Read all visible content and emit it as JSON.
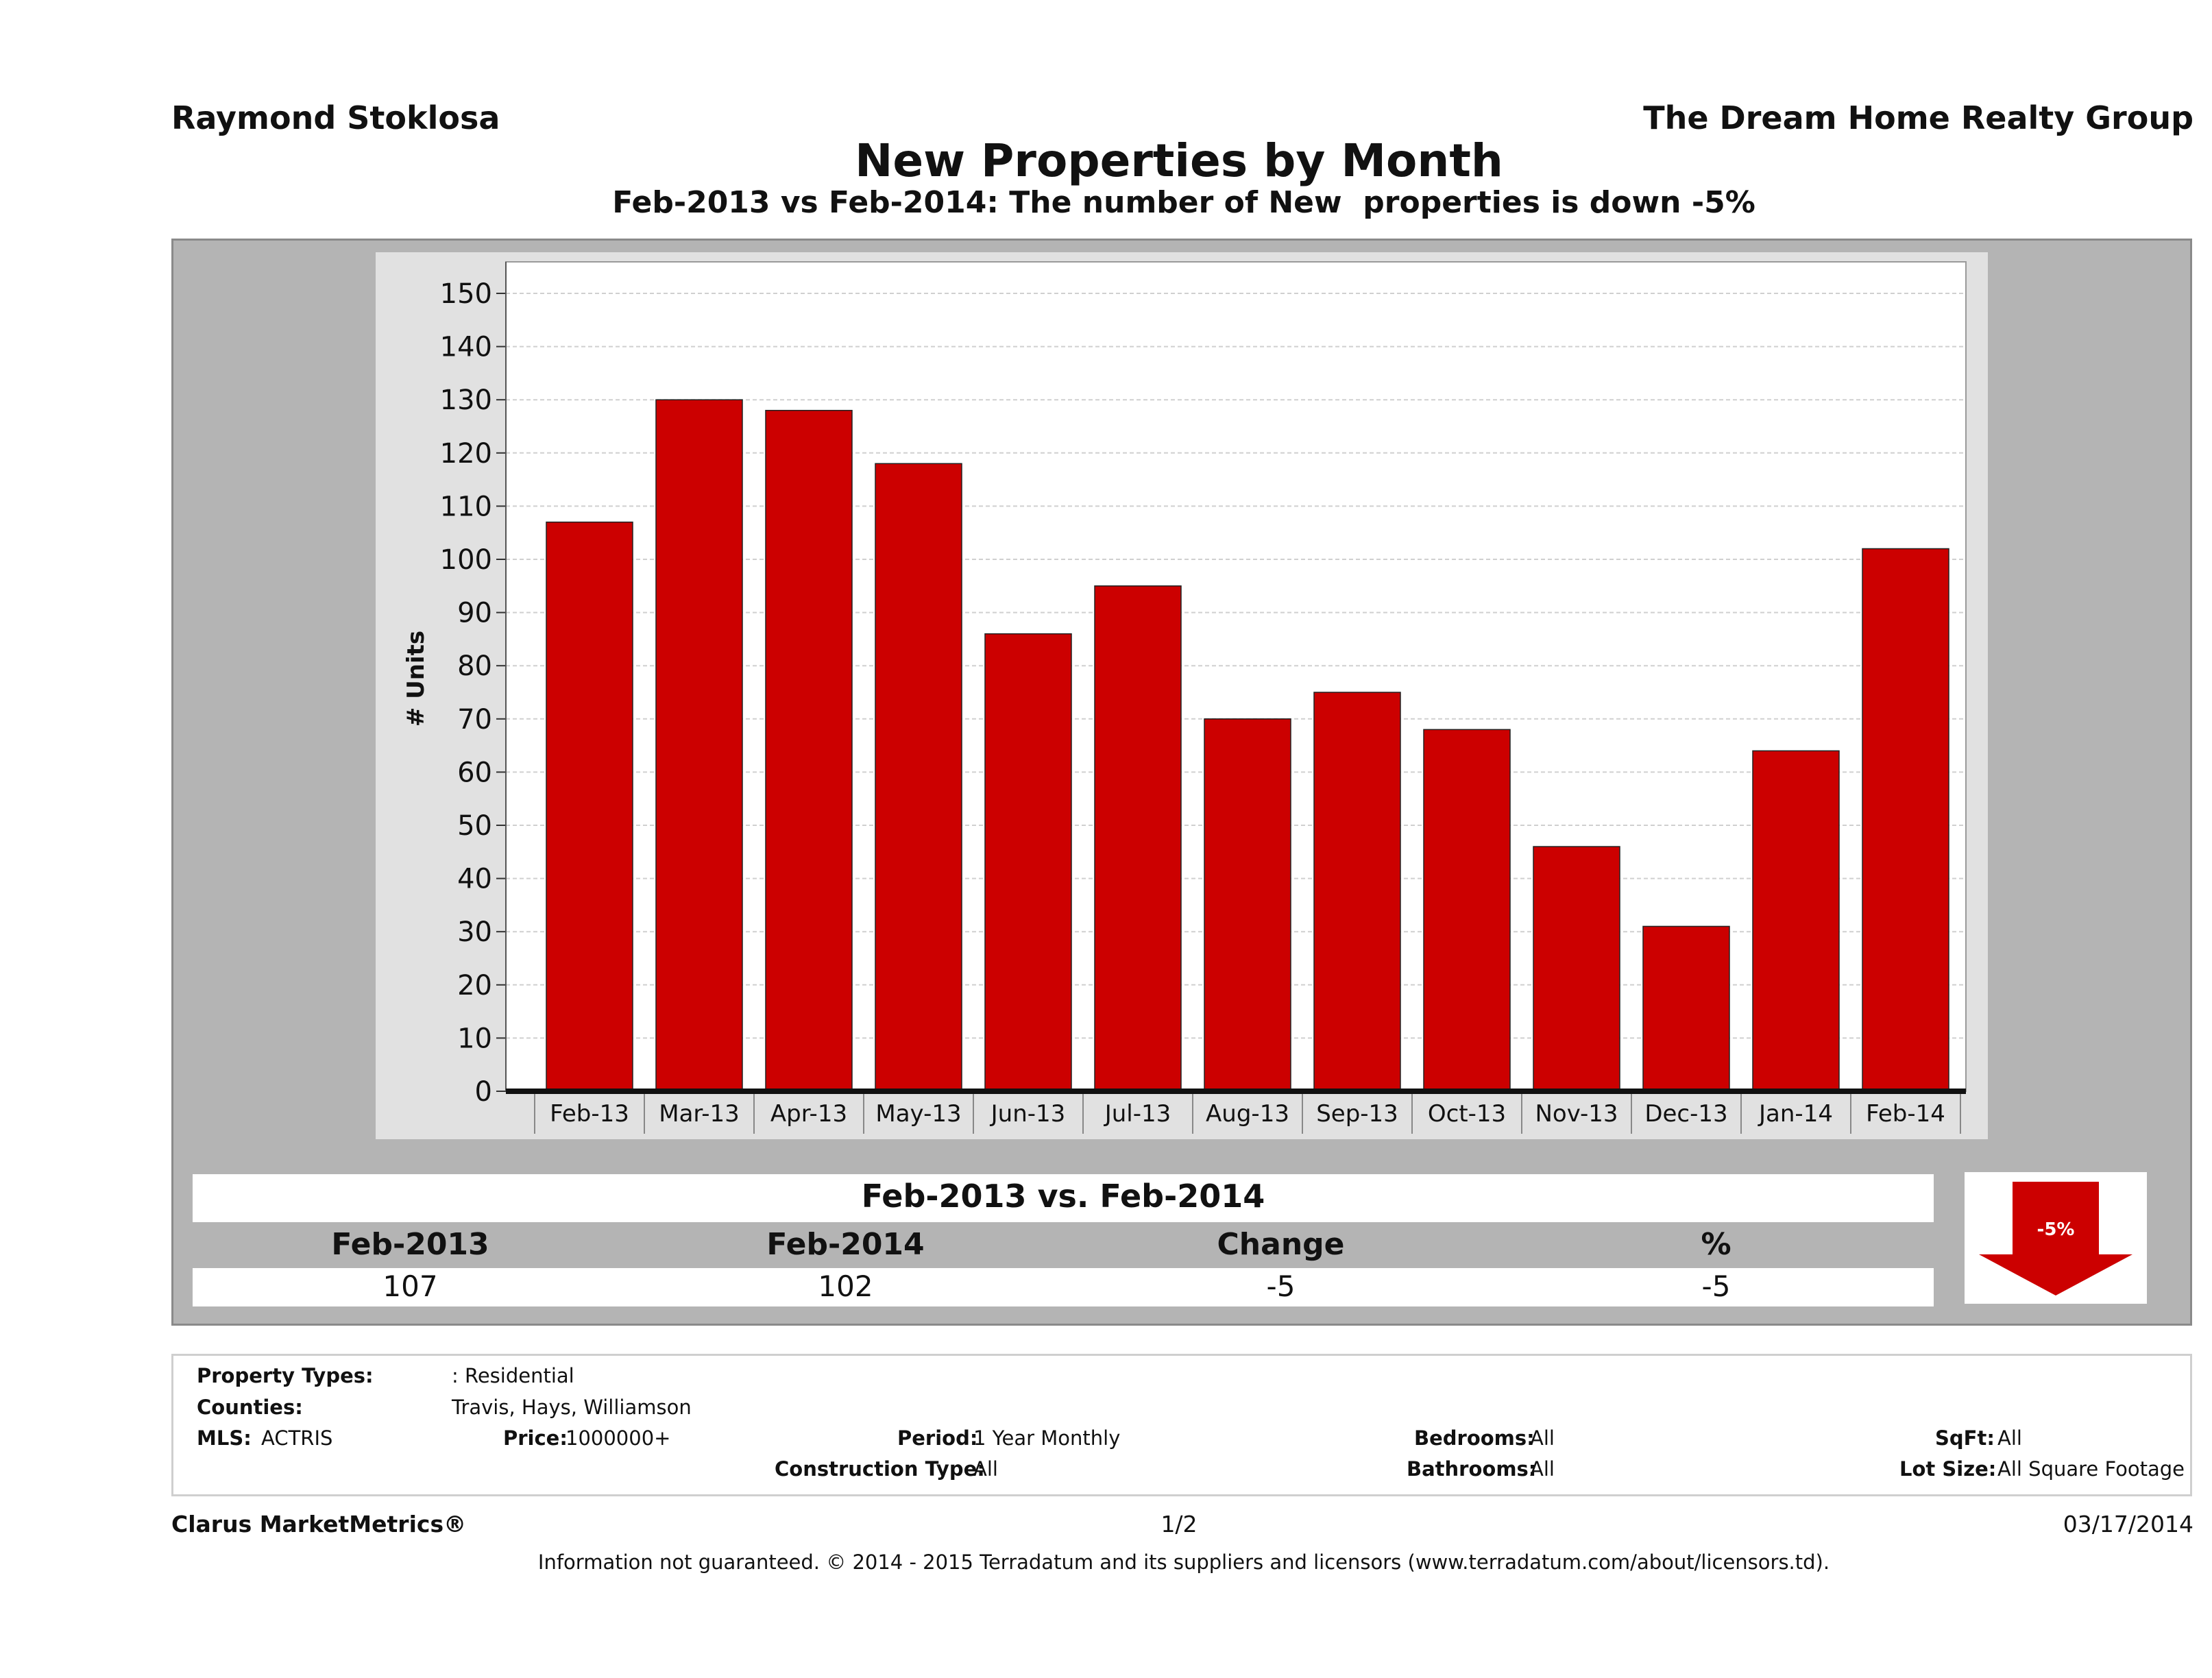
{
  "header": {
    "agent_name": "Raymond Stoklosa",
    "company_name": "The Dream Home Realty Group",
    "title": "New Properties by Month",
    "subtitle": "Feb-2013 vs Feb-2014: The number of New  properties is down -5%"
  },
  "chart_data": {
    "type": "bar",
    "categories": [
      "Feb-13",
      "Mar-13",
      "Apr-13",
      "May-13",
      "Jun-13",
      "Jul-13",
      "Aug-13",
      "Sep-13",
      "Oct-13",
      "Nov-13",
      "Dec-13",
      "Jan-14",
      "Feb-14"
    ],
    "values": [
      107,
      130,
      128,
      118,
      86,
      95,
      70,
      75,
      68,
      46,
      31,
      64,
      102
    ],
    "ylabel": "# Units",
    "xlabel": "",
    "ylim": [
      0,
      150
    ],
    "yticks": [
      0,
      10,
      20,
      30,
      40,
      50,
      60,
      70,
      80,
      90,
      100,
      110,
      120,
      130,
      140,
      150
    ],
    "bar_color": "#cc0000",
    "grid": true,
    "legend": "none"
  },
  "comparison": {
    "title": "Feb-2013 vs. Feb-2014",
    "headers": [
      "Feb-2013",
      "Feb-2014",
      "Change",
      "%"
    ],
    "values": [
      "107",
      "102",
      "-5",
      "-5"
    ],
    "badge_label": "-5%",
    "badge_direction": "down",
    "badge_icon": "down-arrow-icon",
    "badge_color": "#cc0000"
  },
  "filters": {
    "property_types_label": "Property Types:",
    "property_types_value": ": Residential",
    "counties_label": "Counties:",
    "counties_value": "Travis, Hays, Williamson",
    "mls_label": "MLS:",
    "mls_value": "ACTRIS",
    "price_label": "Price:",
    "price_value": "1000000+",
    "period_label": "Period:",
    "period_value": "1 Year Monthly",
    "construction_label": "Construction Type:",
    "construction_value": "All",
    "bedrooms_label": "Bedrooms:",
    "bedrooms_value": "All",
    "bathrooms_label": "Bathrooms:",
    "bathrooms_value": "All",
    "sqft_label": "SqFt:",
    "sqft_value": "All",
    "lotsize_label": "Lot Size:",
    "lotsize_value": "All Square Footage"
  },
  "footer": {
    "brand": "Clarus MarketMetrics®",
    "page": "1/2",
    "date": "03/17/2014",
    "disclaimer": "Information not guaranteed. © 2014 - 2015 Terradatum and its suppliers and licensors (www.terradatum.com/about/licensors.td)."
  }
}
